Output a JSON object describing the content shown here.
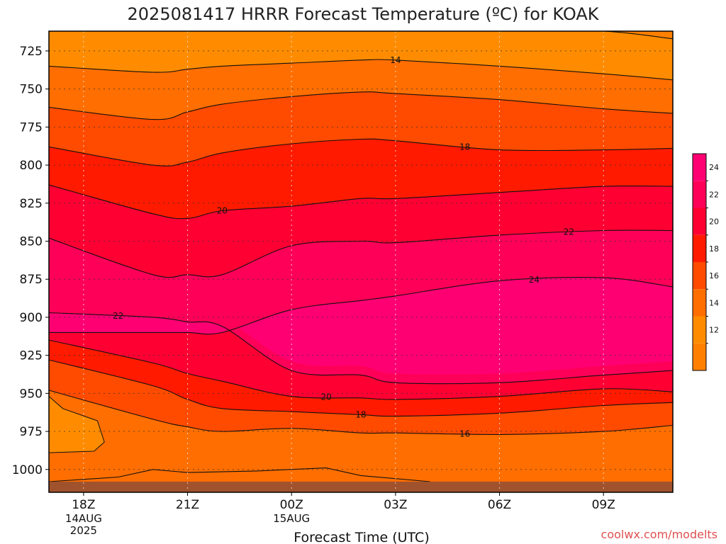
{
  "title": "2025081417 HRRR Forecast Temperature (ºC) for KOAK",
  "credit": "coolwx.com/modelts",
  "colors": {
    "fill_le12": "#ff8000",
    "fill_12_14": "#ff8c00",
    "fill_14_16": "#ff6e00",
    "fill_16_18": "#ff4b00",
    "fill_18_20": "#ff1a00",
    "fill_20_22": "#ff0033",
    "fill_22_24": "#ff0058",
    "fill_ge24": "#ff0073",
    "ground": "#a0522d",
    "contour": "#111111",
    "credit": "#e05050"
  },
  "chart_data": {
    "type": "contour",
    "title": "2025081417 HRRR Forecast Temperature (ºC) for KOAK",
    "xlabel": "Forecast Time (UTC)",
    "ylabel": "",
    "y_scale": "pressure (inverted, hPa)",
    "ylim": [
      1015,
      712
    ],
    "xlim": [
      -1,
      17
    ],
    "y_ticks": [
      725,
      750,
      775,
      800,
      825,
      850,
      875,
      900,
      925,
      950,
      975,
      1000
    ],
    "x_ticks": [
      {
        "label": "18Z",
        "hour": 0
      },
      {
        "label": "21Z",
        "hour": 3
      },
      {
        "label": "00Z",
        "hour": 6
      },
      {
        "label": "03Z",
        "hour": 9
      },
      {
        "label": "06Z",
        "hour": 12
      },
      {
        "label": "09Z",
        "hour": 15
      }
    ],
    "date_labels": [
      {
        "hour": 0,
        "lines": [
          "14AUG",
          "2025"
        ]
      },
      {
        "hour": 6,
        "lines": [
          "15AUG"
        ]
      }
    ],
    "grid": true,
    "colorbar": {
      "levels": [
        12,
        14,
        16,
        18,
        20,
        22,
        24
      ],
      "labeled": [
        12,
        14,
        16,
        18,
        20,
        22,
        24
      ]
    },
    "hours": [
      -1,
      2,
      3,
      4,
      6,
      8,
      9,
      12,
      15,
      17
    ],
    "contours": [
      {
        "value": 12,
        "label": "",
        "pressure": [
          711,
          711,
          711,
          711,
          711,
          711,
          711,
          711,
          712,
          717
        ]
      },
      {
        "value": 14,
        "label": "14",
        "label_hour": 9.0,
        "pressure": [
          735,
          739,
          737,
          735,
          733,
          731,
          731,
          735,
          740,
          744
        ]
      },
      {
        "value": 16,
        "label": "",
        "pressure": [
          762,
          770,
          765,
          760,
          755,
          752,
          753,
          757,
          763,
          766
        ]
      },
      {
        "value": 18,
        "label": "18",
        "label_hour": 11.0,
        "pressure": [
          788,
          800,
          798,
          792,
          786,
          783,
          784,
          790,
          790,
          789
        ]
      },
      {
        "value": 20,
        "label": "20",
        "label_hour": 4.0,
        "pressure": [
          813,
          832,
          835,
          830,
          827,
          822,
          822,
          818,
          814,
          814
        ]
      },
      {
        "value": 22,
        "label": "22",
        "label_hour": 14.0,
        "pressure": [
          848,
          872,
          872,
          872,
          853,
          850,
          851,
          846,
          843,
          843
        ]
      },
      {
        "value": 24,
        "label": "24",
        "label_hour": 13.0,
        "pressure": [
          910,
          910,
          910,
          910,
          895,
          889,
          886,
          876,
          874,
          880
        ]
      },
      {
        "value": 22,
        "label": "22",
        "label_hour": 1.0,
        "pressure": [
          897,
          900,
          903,
          906,
          935,
          938,
          943,
          943,
          938,
          935
        ]
      },
      {
        "value": 20,
        "label": "20",
        "label_hour": 7.0,
        "pressure": [
          915,
          930,
          937,
          942,
          952,
          953,
          954,
          952,
          947,
          949
        ]
      },
      {
        "value": 18,
        "label": "18",
        "label_hour": 8.0,
        "pressure": [
          928,
          945,
          954,
          960,
          962,
          964,
          965,
          963,
          958,
          956
        ]
      },
      {
        "value": 16,
        "label": "16",
        "label_hour": 11.0,
        "pressure": [
          948,
          967,
          972,
          975,
          973,
          976,
          976,
          977,
          975,
          971
        ]
      }
    ],
    "surface_pressure": 1008
  },
  "axes": {
    "xlabel": "Forecast Time (UTC)"
  }
}
